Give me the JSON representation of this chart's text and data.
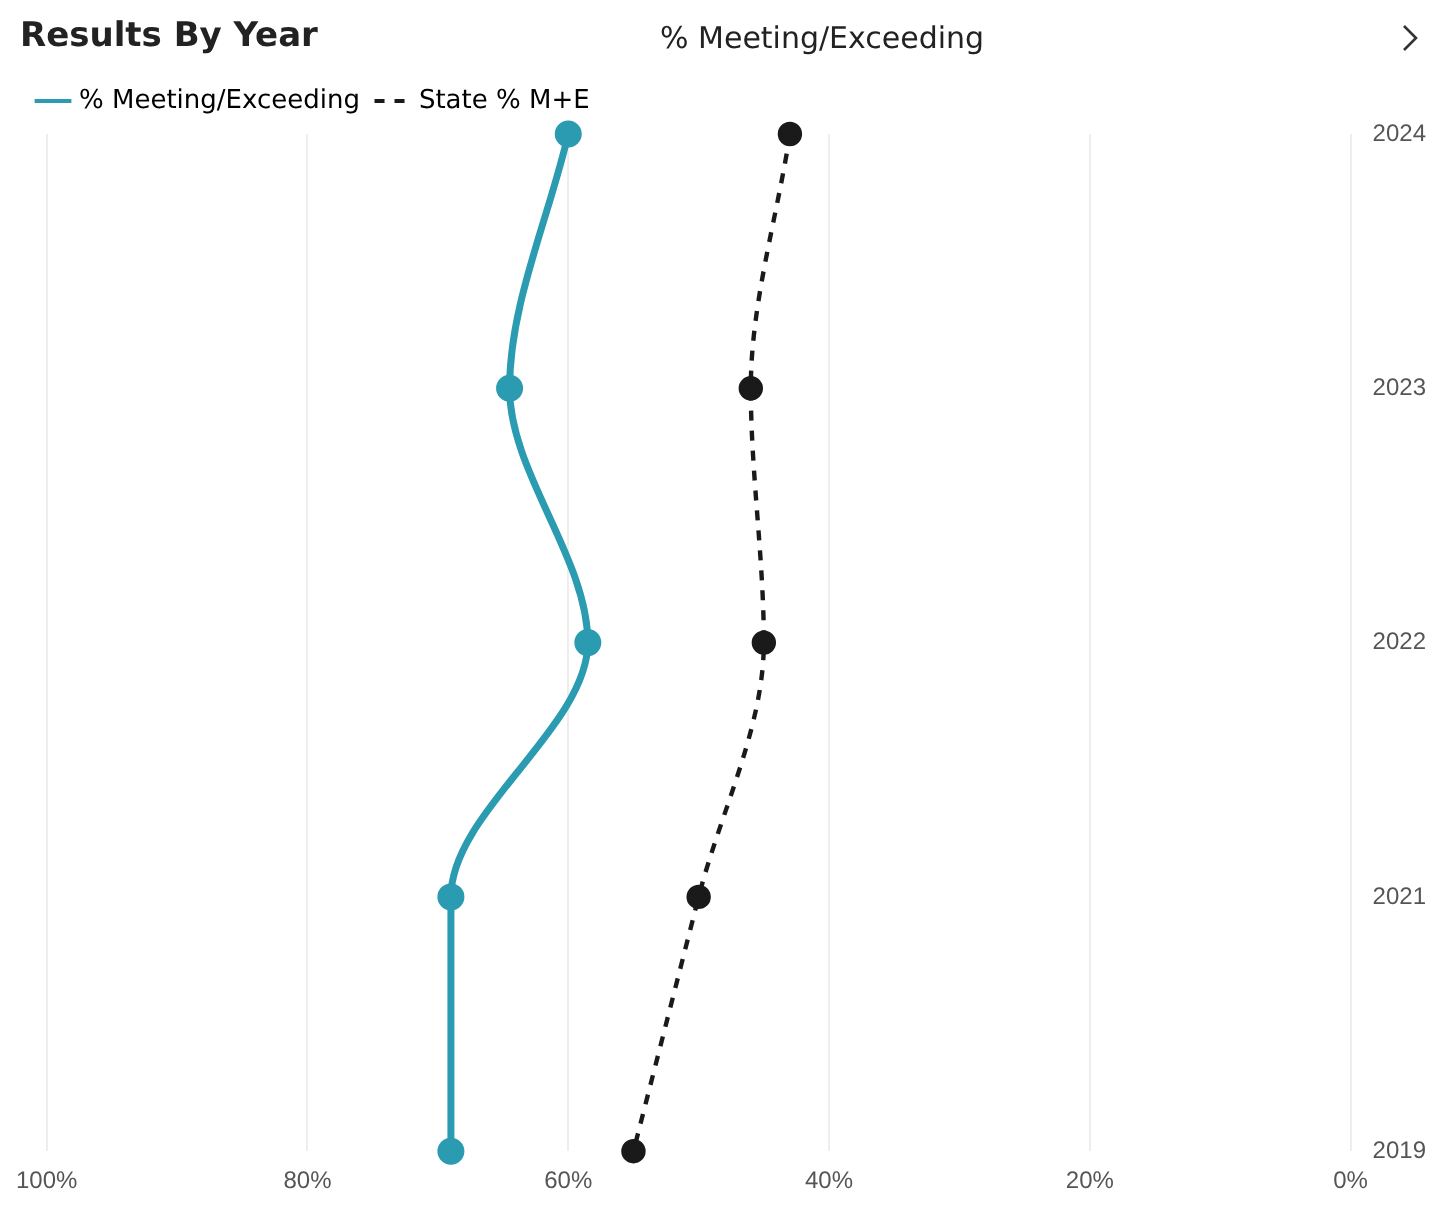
{
  "chart_data": {
    "type": "line",
    "title": "Results By Year",
    "subtitle": "% Meeting/Exceeding",
    "orientation": "horizontal",
    "categories": [
      "2024",
      "2023",
      "2022",
      "2021",
      "2019"
    ],
    "series": [
      {
        "name": "% Meeting/Exceeding",
        "color": "#2a9bb0",
        "line_style": "solid",
        "values": [
          60,
          64.5,
          58.5,
          69,
          69
        ]
      },
      {
        "name": "State % M+E",
        "color": "#1a1a1a",
        "line_style": "dashed",
        "values": [
          43,
          46,
          45,
          50,
          55
        ]
      }
    ],
    "xlim": [
      100,
      0
    ],
    "xticks": [
      {
        "value": 100,
        "label": "100%"
      },
      {
        "value": 80,
        "label": "80%"
      },
      {
        "value": 60,
        "label": "60%"
      },
      {
        "value": 40,
        "label": "40%"
      },
      {
        "value": 20,
        "label": "20%"
      },
      {
        "value": 0,
        "label": "0%"
      }
    ],
    "grid": "x",
    "legend": "top left",
    "marker": "circle"
  }
}
